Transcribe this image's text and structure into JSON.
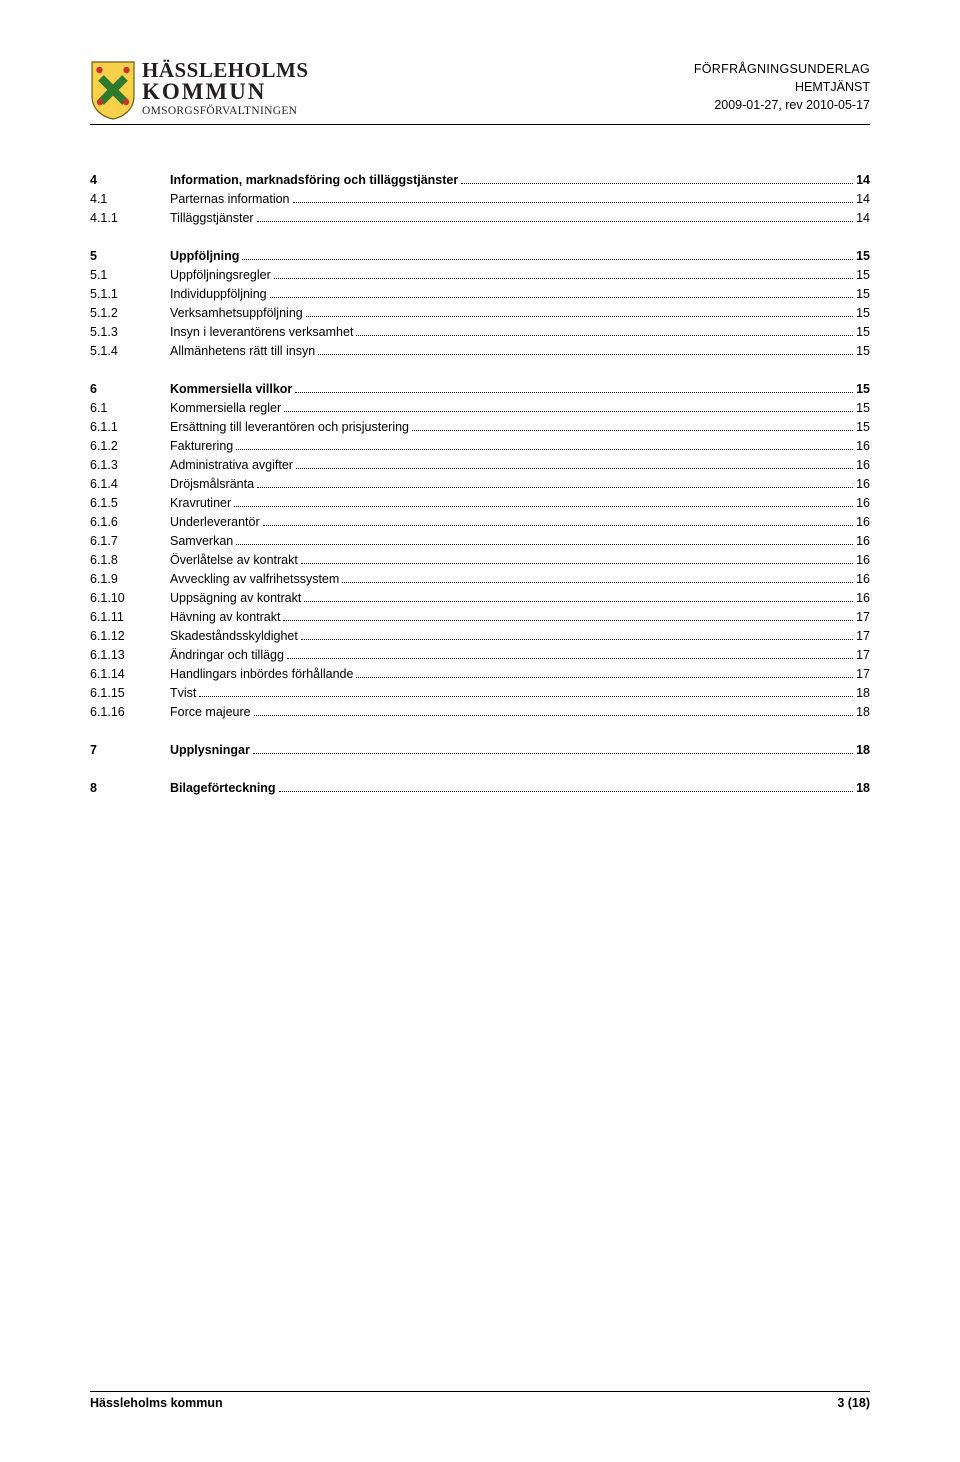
{
  "header": {
    "logo_line1": "HÄSSLEHOLMS",
    "logo_line2": "KOMMUN",
    "logo_sub": "OMSORGSFÖRVALTNINGEN",
    "doc_type": "FÖRFRÅGNINGSUNDERLAG",
    "doc_service": "HEMTJÄNST",
    "doc_date": "2009-01-27, rev 2010-05-17"
  },
  "colors": {
    "text": "#000000",
    "rule": "#000000",
    "shield_yellow": "#f8d04a",
    "shield_green": "#2e7a2e",
    "shield_red": "#c83232",
    "shield_stroke": "#6b5a1a"
  },
  "toc": [
    {
      "num": "4",
      "title": "Information, marknadsföring och tilläggstjänster",
      "page": "14",
      "bold": true
    },
    {
      "num": "4.1",
      "title": "Parternas information",
      "page": "14"
    },
    {
      "num": "4.1.1",
      "title": "Tilläggstjänster",
      "page": "14"
    },
    {
      "blank": true
    },
    {
      "num": "5",
      "title": "Uppföljning",
      "page": "15",
      "bold": true
    },
    {
      "num": "5.1",
      "title": "Uppföljningsregler",
      "page": "15"
    },
    {
      "num": "5.1.1",
      "title": "Individuppföljning",
      "page": "15"
    },
    {
      "num": "5.1.2",
      "title": "Verksamhetsuppföljning",
      "page": "15"
    },
    {
      "num": "5.1.3",
      "title": "Insyn i leverantörens verksamhet",
      "page": "15"
    },
    {
      "num": "5.1.4",
      "title": "Allmänhetens rätt till insyn",
      "page": "15"
    },
    {
      "blank": true
    },
    {
      "num": "6",
      "title": "Kommersiella villkor",
      "page": "15",
      "bold": true
    },
    {
      "num": "6.1",
      "title": "Kommersiella regler",
      "page": "15"
    },
    {
      "num": "6.1.1",
      "title": "Ersättning till leverantören och prisjustering",
      "page": "15"
    },
    {
      "num": "6.1.2",
      "title": "Fakturering",
      "page": "16"
    },
    {
      "num": "6.1.3",
      "title": "Administrativa avgifter",
      "page": "16"
    },
    {
      "num": "6.1.4",
      "title": "Dröjsmålsränta",
      "page": "16"
    },
    {
      "num": "6.1.5",
      "title": "Kravrutiner",
      "page": "16"
    },
    {
      "num": "6.1.6",
      "title": "Underleverantör",
      "page": "16"
    },
    {
      "num": "6.1.7",
      "title": "Samverkan",
      "page": "16"
    },
    {
      "num": "6.1.8",
      "title": "Överlåtelse av kontrakt",
      "page": "16"
    },
    {
      "num": "6.1.9",
      "title": "Avveckling av valfrihetssystem",
      "page": "16"
    },
    {
      "num": "6.1.10",
      "title": "Uppsägning av kontrakt",
      "page": "16"
    },
    {
      "num": "6.1.11",
      "title": "Hävning av kontrakt",
      "page": "17"
    },
    {
      "num": "6.1.12",
      "title": "Skadeståndsskyldighet",
      "page": "17"
    },
    {
      "num": "6.1.13",
      "title": "Ändringar och tillägg",
      "page": "17"
    },
    {
      "num": "6.1.14",
      "title": "Handlingars inbördes förhållande",
      "page": "17"
    },
    {
      "num": "6.1.15",
      "title": "Tvist",
      "page": "18"
    },
    {
      "num": "6.1.16",
      "title": "Force majeure",
      "page": "18"
    },
    {
      "blank": true
    },
    {
      "num": "7",
      "title": "Upplysningar",
      "page": "18",
      "bold": true
    },
    {
      "blank": true
    },
    {
      "num": "8",
      "title": "Bilageförteckning",
      "page": "18",
      "bold": true
    }
  ],
  "footer": {
    "left": "Hässleholms kommun",
    "right": "3 (18)"
  }
}
